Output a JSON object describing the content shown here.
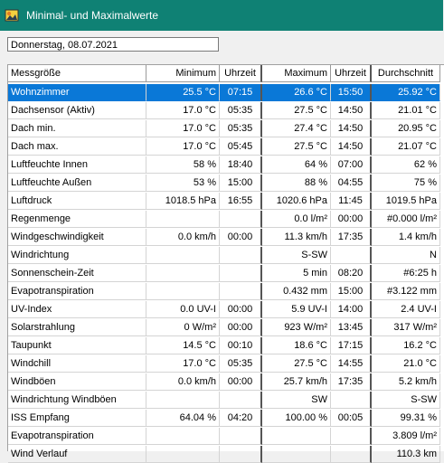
{
  "window": {
    "title": "Minimal- und Maximalwerte",
    "icon": "app-weather-icon"
  },
  "date_field": {
    "value": "Donnerstag, 08.07.2021"
  },
  "table": {
    "headers": [
      "Messgröße",
      "Minimum",
      "Uhrzeit",
      "Maximum",
      "Uhrzeit",
      "Durchschnitt"
    ],
    "selected_row": 0,
    "rows": [
      [
        "Wohnzimmer",
        "25.5 °C",
        "07:15",
        "26.6 °C",
        "15:50",
        "25.92 °C"
      ],
      [
        "Dachsensor (Aktiv)",
        "17.0 °C",
        "05:35",
        "27.5 °C",
        "14:50",
        "21.01 °C"
      ],
      [
        "Dach min.",
        "17.0 °C",
        "05:35",
        "27.4 °C",
        "14:50",
        "20.95 °C"
      ],
      [
        "Dach max.",
        "17.0 °C",
        "05:45",
        "27.5 °C",
        "14:50",
        "21.07 °C"
      ],
      [
        "Luftfeuchte Innen",
        "58 %",
        "18:40",
        "64 %",
        "07:00",
        "62 %"
      ],
      [
        "Luftfeuchte Außen",
        "53 %",
        "15:00",
        "88 %",
        "04:55",
        "75 %"
      ],
      [
        "Luftdruck",
        "1018.5 hPa",
        "16:55",
        "1020.6 hPa",
        "11:45",
        "1019.5 hPa"
      ],
      [
        "Regenmenge",
        "",
        "",
        "0.0 l/m²",
        "00:00",
        "#0.000 l/m²"
      ],
      [
        "Windgeschwindigkeit",
        "0.0 km/h",
        "00:00",
        "11.3 km/h",
        "17:35",
        "1.4 km/h"
      ],
      [
        "Windrichtung",
        "",
        "",
        "S-SW",
        "",
        "N"
      ],
      [
        "Sonnenschein-Zeit",
        "",
        "",
        "5 min",
        "08:20",
        "#6:25 h"
      ],
      [
        "Evapotranspiration",
        "",
        "",
        "0.432 mm",
        "15:00",
        "#3.122 mm"
      ],
      [
        "UV-Index",
        "0.0 UV-I",
        "00:00",
        "5.9 UV-I",
        "14:00",
        "2.4 UV-I"
      ],
      [
        "Solarstrahlung",
        "0 W/m²",
        "00:00",
        "923 W/m²",
        "13:45",
        "317 W/m²"
      ],
      [
        "Taupunkt",
        "14.5 °C",
        "00:10",
        "18.6 °C",
        "17:15",
        "16.2 °C"
      ],
      [
        "Windchill",
        "17.0 °C",
        "05:35",
        "27.5 °C",
        "14:55",
        "21.0 °C"
      ],
      [
        "Windböen",
        "0.0 km/h",
        "00:00",
        "25.7 km/h",
        "17:35",
        "5.2 km/h"
      ],
      [
        "Windrichtung Windböen",
        "",
        "",
        "SW",
        "",
        "S-SW"
      ],
      [
        "ISS Empfang",
        "64.04 %",
        "04:20",
        "100.00 %",
        "00:05",
        "99.31 %"
      ],
      [
        "Evapotranspiration",
        "",
        "",
        "",
        "",
        "3.809 l/m²"
      ],
      [
        "Wind Verlauf",
        "",
        "",
        "",
        "",
        "110.3 km"
      ]
    ]
  }
}
